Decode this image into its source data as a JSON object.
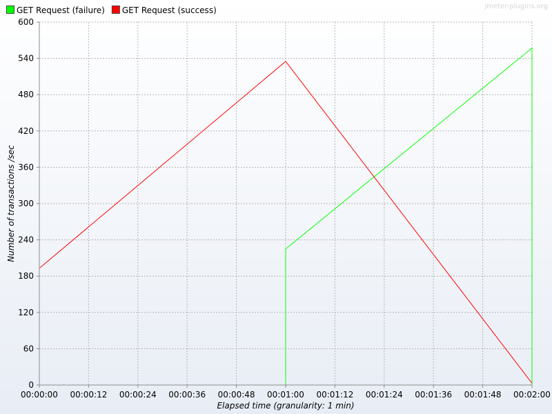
{
  "chart_data": {
    "type": "line",
    "watermark": "jmeter-plugins.org",
    "xlabel": "Elapsed time (granularity: 1 min)",
    "ylabel": "Number of transactions /sec",
    "xlim": [
      0,
      120
    ],
    "ylim": [
      0,
      600
    ],
    "y_ticks": [
      0,
      60,
      120,
      180,
      240,
      300,
      360,
      420,
      480,
      540,
      600
    ],
    "x_ticks": [
      0,
      12,
      24,
      36,
      48,
      60,
      72,
      84,
      96,
      108,
      120
    ],
    "x_tick_labels": [
      "00:00:00",
      "00:00:12",
      "00:00:24",
      "00:00:36",
      "00:00:48",
      "00:01:00",
      "00:01:12",
      "00:01:24",
      "00:01:36",
      "00:01:48",
      "00:02:00"
    ],
    "grid": true,
    "legend_position": "top-left",
    "series": [
      {
        "name": "GET Request (failure)",
        "color": "#00ff00",
        "points": [
          [
            60,
            0
          ],
          [
            60,
            225
          ],
          [
            120,
            557
          ],
          [
            120,
            0
          ]
        ]
      },
      {
        "name": "GET Request (success)",
        "color": "#ff0000",
        "points": [
          [
            0,
            0
          ],
          [
            0,
            193
          ],
          [
            60,
            535
          ],
          [
            120,
            3
          ]
        ]
      }
    ]
  }
}
